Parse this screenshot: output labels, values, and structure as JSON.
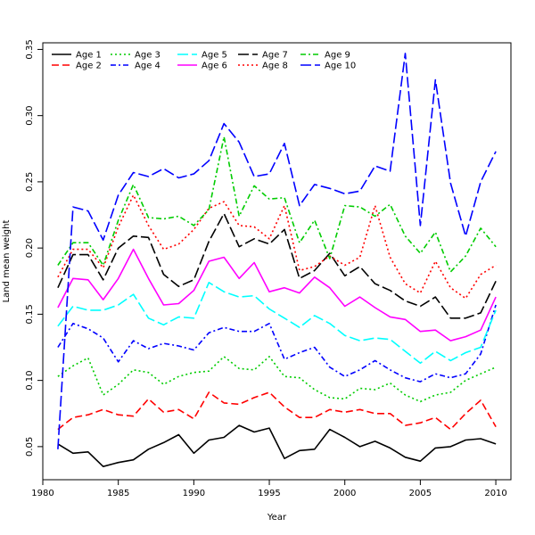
{
  "chart_data": {
    "type": "line",
    "title": "",
    "xlabel": "Year",
    "ylabel": "Land mean weight",
    "xlim": [
      1980,
      2011
    ],
    "ylim": [
      0.025,
      0.355
    ],
    "x_ticks": [
      1980,
      1985,
      1990,
      1995,
      2000,
      2005,
      2010
    ],
    "y_ticks": [
      0.05,
      0.1,
      0.15,
      0.2,
      0.25,
      0.3,
      0.35
    ],
    "y_tick_labels": [
      "0.05",
      "0.10",
      "0.15",
      "0.20",
      "0.25",
      "0.30",
      "0.35"
    ],
    "grid": false,
    "legend_position": "top-left",
    "x": [
      1981,
      1982,
      1983,
      1984,
      1985,
      1986,
      1987,
      1988,
      1989,
      1990,
      1991,
      1992,
      1993,
      1994,
      1995,
      1996,
      1997,
      1998,
      1999,
      2000,
      2001,
      2002,
      2003,
      2004,
      2005,
      2006,
      2007,
      2008,
      2009,
      2010
    ],
    "series": [
      {
        "name": "Age 1",
        "color": "#000000",
        "dash": "solid",
        "values": [
          0.052,
          0.045,
          0.046,
          0.035,
          0.038,
          0.04,
          0.048,
          0.053,
          0.059,
          0.045,
          0.055,
          0.057,
          0.066,
          0.061,
          0.064,
          0.041,
          0.047,
          0.048,
          0.063,
          0.057,
          0.05,
          0.054,
          0.049,
          0.042,
          0.039,
          0.049,
          0.05,
          0.055,
          0.056,
          0.052
        ]
      },
      {
        "name": "Age 2",
        "color": "#ff0000",
        "dash": "dashed",
        "values": [
          0.063,
          0.072,
          0.074,
          0.078,
          0.074,
          0.073,
          0.086,
          0.076,
          0.078,
          0.071,
          0.091,
          0.083,
          0.082,
          0.087,
          0.091,
          0.08,
          0.072,
          0.072,
          0.078,
          0.076,
          0.078,
          0.075,
          0.075,
          0.066,
          0.068,
          0.072,
          0.063,
          0.075,
          0.085,
          0.065
        ]
      },
      {
        "name": "Age 3",
        "color": "#00cc00",
        "dash": "dotted",
        "values": [
          0.103,
          0.111,
          0.117,
          0.089,
          0.097,
          0.108,
          0.106,
          0.097,
          0.103,
          0.106,
          0.107,
          0.118,
          0.109,
          0.108,
          0.118,
          0.103,
          0.102,
          0.093,
          0.087,
          0.086,
          0.094,
          0.093,
          0.098,
          0.089,
          0.084,
          0.089,
          0.091,
          0.1,
          0.105,
          0.11
        ]
      },
      {
        "name": "Age 4",
        "color": "#0000ff",
        "dash": "dashdot",
        "values": [
          0.125,
          0.143,
          0.139,
          0.132,
          0.114,
          0.13,
          0.124,
          0.128,
          0.126,
          0.123,
          0.136,
          0.14,
          0.137,
          0.137,
          0.143,
          0.116,
          0.121,
          0.125,
          0.11,
          0.103,
          0.108,
          0.115,
          0.108,
          0.102,
          0.099,
          0.105,
          0.102,
          0.105,
          0.12,
          0.157
        ]
      },
      {
        "name": "Age 5",
        "color": "#00ffff",
        "dash": "longdash",
        "values": [
          0.141,
          0.156,
          0.153,
          0.153,
          0.157,
          0.165,
          0.147,
          0.142,
          0.148,
          0.147,
          0.174,
          0.167,
          0.163,
          0.164,
          0.154,
          0.147,
          0.14,
          0.149,
          0.143,
          0.134,
          0.13,
          0.132,
          0.131,
          0.122,
          0.113,
          0.122,
          0.115,
          0.121,
          0.125,
          0.153
        ]
      },
      {
        "name": "Age 6",
        "color": "#ff00ff",
        "dash": "solid",
        "values": [
          0.155,
          0.177,
          0.176,
          0.161,
          0.177,
          0.199,
          0.177,
          0.157,
          0.158,
          0.168,
          0.19,
          0.193,
          0.177,
          0.189,
          0.167,
          0.17,
          0.166,
          0.178,
          0.17,
          0.156,
          0.163,
          0.155,
          0.148,
          0.146,
          0.137,
          0.138,
          0.13,
          0.133,
          0.138,
          0.163
        ]
      },
      {
        "name": "Age 7",
        "color": "#000000",
        "dash": "longdash",
        "values": [
          0.17,
          0.195,
          0.195,
          0.176,
          0.2,
          0.209,
          0.208,
          0.18,
          0.171,
          0.176,
          0.205,
          0.226,
          0.201,
          0.207,
          0.203,
          0.214,
          0.177,
          0.183,
          0.196,
          0.179,
          0.186,
          0.173,
          0.168,
          0.16,
          0.156,
          0.163,
          0.147,
          0.147,
          0.151,
          0.175
        ]
      },
      {
        "name": "Age 8",
        "color": "#ff0000",
        "dash": "dotted",
        "values": [
          0.178,
          0.199,
          0.199,
          0.185,
          0.216,
          0.24,
          0.217,
          0.199,
          0.203,
          0.214,
          0.23,
          0.235,
          0.217,
          0.216,
          0.207,
          0.232,
          0.183,
          0.186,
          0.194,
          0.187,
          0.193,
          0.232,
          0.193,
          0.173,
          0.166,
          0.19,
          0.17,
          0.162,
          0.18,
          0.187
        ]
      },
      {
        "name": "Age 9",
        "color": "#00cc00",
        "dash": "dashdot",
        "values": [
          0.187,
          0.204,
          0.204,
          0.187,
          0.221,
          0.248,
          0.223,
          0.222,
          0.224,
          0.217,
          0.229,
          0.284,
          0.224,
          0.247,
          0.237,
          0.238,
          0.204,
          0.221,
          0.192,
          0.232,
          0.231,
          0.224,
          0.233,
          0.209,
          0.196,
          0.212,
          0.182,
          0.194,
          0.215,
          0.201
        ]
      },
      {
        "name": "Age 10",
        "color": "#0000ff",
        "dash": "longdash",
        "values": [
          0.048,
          0.231,
          0.228,
          0.206,
          0.24,
          0.257,
          0.254,
          0.26,
          0.253,
          0.256,
          0.266,
          0.294,
          0.28,
          0.254,
          0.256,
          0.279,
          0.232,
          0.248,
          0.245,
          0.241,
          0.243,
          0.262,
          0.258,
          0.347,
          0.217,
          0.327,
          0.249,
          0.209,
          0.25,
          0.273
        ]
      }
    ]
  }
}
